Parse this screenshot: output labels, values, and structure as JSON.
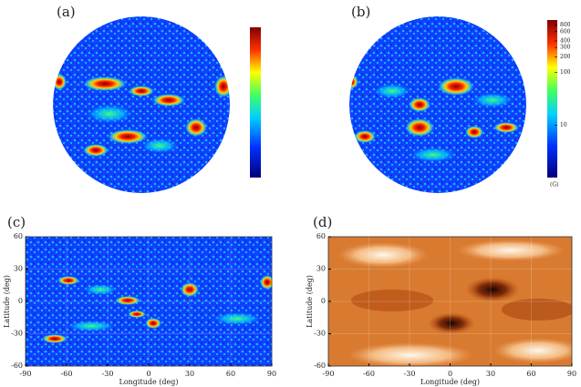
{
  "panels": [
    {
      "label": "(a)"
    },
    {
      "label": "(b)",
      "colorbar": {
        "log": true,
        "lim": [
          1,
          1000
        ],
        "ticks": [
          800,
          600,
          400,
          300,
          200,
          100,
          10
        ],
        "unit": "(G)"
      }
    },
    {
      "label": "(c)",
      "x_label": "Longitude (deg)",
      "y_label": "Latitude (deg)",
      "xticks": [
        -90,
        -60,
        -30,
        0,
        30,
        60,
        90
      ],
      "yticks": [
        60,
        30,
        0,
        -30,
        -60
      ]
    },
    {
      "label": "(d)",
      "x_label": "Longitude (deg)",
      "y_label": "Latitude (deg)",
      "xticks": [
        -90,
        -60,
        -30,
        0,
        30,
        60,
        90
      ],
      "yticks": [
        60,
        30,
        0,
        -30,
        -60
      ]
    }
  ]
}
